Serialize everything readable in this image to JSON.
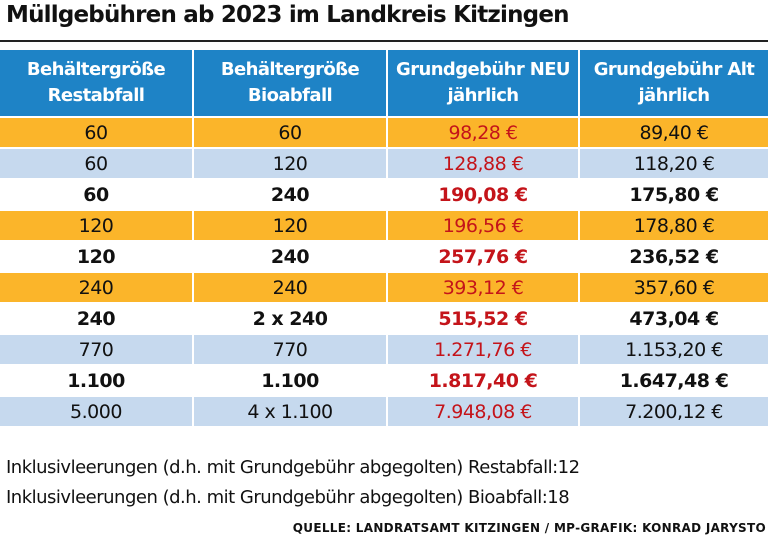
{
  "chart_data": {
    "type": "table",
    "title": "Müllgebühren ab 2023 im Landkreis Kitzingen",
    "columns": [
      "Behältergröße Restabfall",
      "Behältergröße Bioabfall",
      "Grundgebühr NEU jährlich",
      "Grundgebühr Alt jährlich"
    ],
    "header_lines": [
      [
        "Behältergröße",
        "Restabfall"
      ],
      [
        "Behältergröße",
        "Bioabfall"
      ],
      [
        "Grundgebühr NEU",
        "jährlich"
      ],
      [
        "Grundgebühr Alt",
        "jährlich"
      ]
    ],
    "rows": [
      [
        "60",
        "60",
        "98,28 €",
        "89,40 €"
      ],
      [
        "60",
        "120",
        "128,88 €",
        "118,20 €"
      ],
      [
        "60",
        "240",
        "190,08 €",
        "175,80 €"
      ],
      [
        "120",
        "120",
        "196,56 €",
        "178,80 €"
      ],
      [
        "120",
        "240",
        "257,76 €",
        "236,52 €"
      ],
      [
        "240",
        "240",
        "393,12 €",
        "357,60 €"
      ],
      [
        "240",
        "2 x 240",
        "515,52 €",
        "473,04 €"
      ],
      [
        "770",
        "770",
        "1.271,76 €",
        "1.153,20 €"
      ],
      [
        "1.100",
        "1.100",
        "1.817,40 €",
        "1.647,48 €"
      ],
      [
        "5.000",
        "4 x 1.100",
        "7.948,08 €",
        "7.200,12 €"
      ]
    ],
    "row_styles": [
      "orange",
      "blue",
      "white",
      "orange",
      "white",
      "orange",
      "white",
      "blue",
      "white",
      "blue"
    ]
  },
  "notes": [
    "Inklusivleerungen (d.h. mit Grundgebühr abgegolten) Restabfall:12",
    "Inklusivleerungen (d.h. mit Grundgebühr abgegolten) Bioabfall:18"
  ],
  "source": "QUELLE: LANDRATSAMT KITZINGEN / MP-GRAFIK: KONRAD JARYSTO",
  "colors": {
    "header_bg": "#1e83c6",
    "orange_row": "#fbb52a",
    "blue_row": "#c6d9ee",
    "new_price": "#c4141a"
  }
}
